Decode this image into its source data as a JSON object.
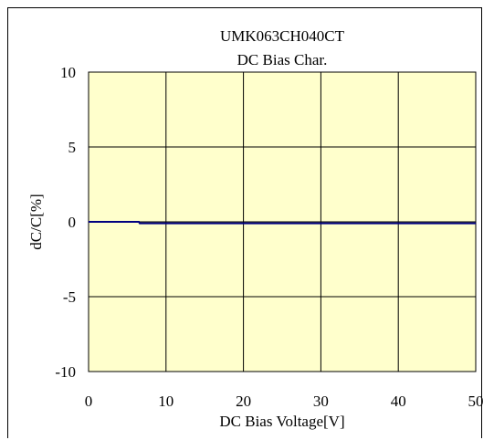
{
  "chart_data": {
    "type": "line",
    "title": "UMK063CH040CT",
    "subtitle": "DC Bias Char.",
    "xlabel": "DC Bias Voltage[V]",
    "ylabel": "dC/C[%]",
    "xlim": [
      0,
      50
    ],
    "ylim": [
      -10,
      10
    ],
    "x_ticks": [
      0,
      10,
      20,
      30,
      40,
      50
    ],
    "y_ticks": [
      10,
      5,
      0,
      -5,
      -10
    ],
    "x_tick_labels": [
      "0",
      "10",
      "20",
      "30",
      "40",
      "50"
    ],
    "y_tick_labels": [
      "10",
      "5",
      "0",
      "-5",
      "-10"
    ],
    "grid": true,
    "plot_background": "#ffffcc",
    "line_color": "#000080",
    "series": [
      {
        "x": [
          0,
          6.5,
          6.6,
          50
        ],
        "y": [
          0.0,
          0.0,
          -0.1,
          -0.1
        ]
      }
    ]
  }
}
